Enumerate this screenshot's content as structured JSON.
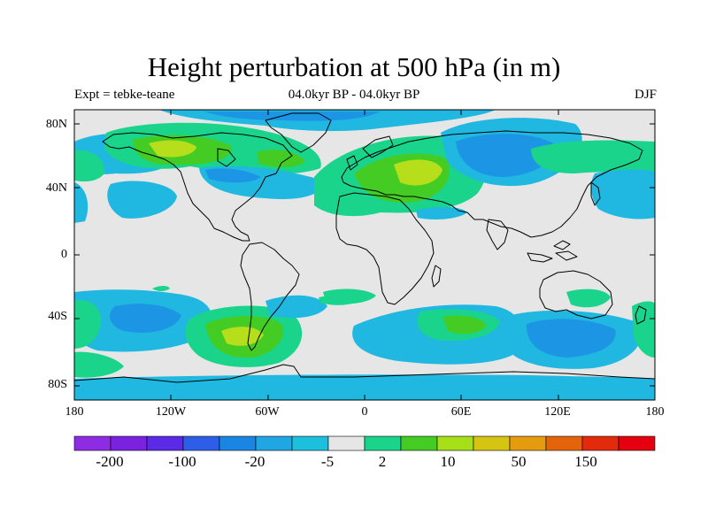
{
  "title": "Height perturbation at 500 hPa (in m)",
  "subtitle_left": "Expt = tebke-teane",
  "subtitle_center": "04.0kyr BP - 04.0kyr BP",
  "subtitle_right": "DJF",
  "lat_labels": [
    "80N",
    "40N",
    "0",
    "40S",
    "80S"
  ],
  "lon_labels": [
    "180",
    "120W",
    "60W",
    "0",
    "60E",
    "120E",
    "180"
  ],
  "colorbar": {
    "colors": [
      "#8e2ce4",
      "#7a22e0",
      "#5a2ae6",
      "#2e5ee8",
      "#1a86e4",
      "#20a6e2",
      "#1cc0dc",
      "#e6e6e6",
      "#1ad48c",
      "#44cc24",
      "#a6de18",
      "#d6c412",
      "#e49c0e",
      "#e4640c",
      "#e42a0c",
      "#e40010"
    ],
    "labels": [
      "-200",
      "-100",
      "-20",
      "-5",
      "2",
      "10",
      "50",
      "150"
    ]
  },
  "field_colors": {
    "background": "#e6e6e6",
    "neg_light": "#20b8e0",
    "neg_mid": "#1c96e4",
    "pos_light": "#1ad48c",
    "pos_mid": "#44cc24",
    "pos_strong": "#b6de1a"
  }
}
